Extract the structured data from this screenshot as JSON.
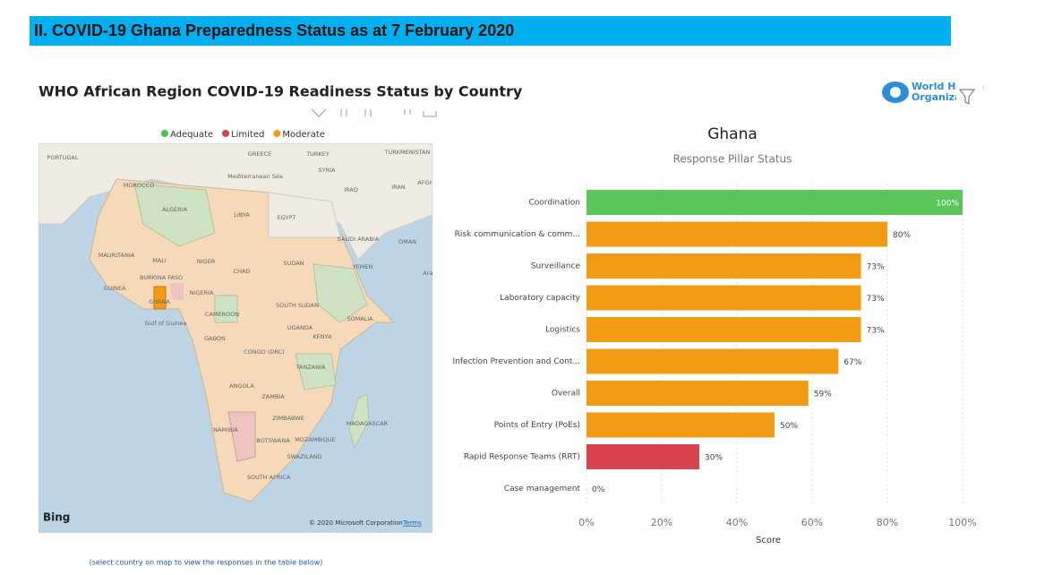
{
  "header": {
    "title": "II. COVID-19 Ghana Preparedness Status as at 7 February 2020"
  },
  "dashboard": {
    "title": "WHO African Region COVID-19 Readiness Status by Country",
    "logo": [
      "World Health",
      "Organization"
    ],
    "legend": [
      {
        "name": "Adequate",
        "color": "#4cc35a"
      },
      {
        "name": "Limited",
        "color": "#d9434e"
      },
      {
        "name": "Moderate",
        "color": "#f29b14"
      }
    ],
    "map": {
      "labels": [
        "PORTUGAL",
        "GREECE",
        "TURKEY",
        "TURKMENISTAN",
        "MOROCCO",
        "Mediterranean Sea",
        "SYRIA",
        "IRAQ",
        "IRAN",
        "AFGHAN",
        "ALGERIA",
        "LIBYA",
        "EGYPT",
        "SAUDI ARABIA",
        "OMAN",
        "MAURITANIA",
        "MALI",
        "NIGER",
        "CHAD",
        "SUDAN",
        "YEMEN",
        "Arab",
        "BURKINA FASO",
        "GUINEA",
        "GHANA",
        "NIGERIA",
        "Gulf of Guinea",
        "CAMEROON",
        "SOUTH SUDAN",
        "SOMALIA",
        "UGANDA",
        "KENYA",
        "GABON",
        "CONGO (DRC)",
        "TANZANIA",
        "ANGOLA",
        "ZAMBIA",
        "ZIMBABWE",
        "NAMIBIA",
        "BOTSWANA",
        "MOZAMBIQUE",
        "MADAGASCAR",
        "SWAZILAND",
        "SOUTH AFRICA"
      ],
      "provider": "Bing",
      "copyright": "© 2020 Microsoft Corporation",
      "terms": "Terms"
    },
    "footnote": "(select country on map to view the responses in the table below)"
  },
  "chart_data": {
    "type": "bar",
    "orientation": "horizontal",
    "title": "Ghana",
    "subtitle": "Response Pillar Status",
    "x_label": "Score",
    "categories": [
      "Coordination",
      "Risk communication & comm...",
      "Surveillance",
      "Laboratory capacity",
      "Logistics",
      "Infection Prevention and Cont...",
      "Overall",
      "Points of Entry (PoEs)",
      "Rapid Response Teams (RRT)",
      "Case management"
    ],
    "values": [
      100,
      80,
      73,
      73,
      73,
      67,
      59,
      50,
      30,
      0
    ],
    "value_labels": [
      "100%",
      "80%",
      "73%",
      "73%",
      "73%",
      "67%",
      "59%",
      "50%",
      "30%",
      "0%"
    ],
    "colors": [
      "#5ac55a",
      "#f29b14",
      "#f29b14",
      "#f29b14",
      "#f29b14",
      "#f29b14",
      "#f29b14",
      "#f29b14",
      "#d9434e",
      "#f29b14"
    ],
    "xlim": [
      0,
      100
    ],
    "xticks": [
      {
        "value": 0,
        "label": "0%"
      },
      {
        "value": 20,
        "label": "20%"
      },
      {
        "value": 40,
        "label": "40%"
      },
      {
        "value": 60,
        "label": "60%"
      },
      {
        "value": 80,
        "label": "80%"
      },
      {
        "value": 100,
        "label": "100%"
      }
    ],
    "grid": true
  }
}
